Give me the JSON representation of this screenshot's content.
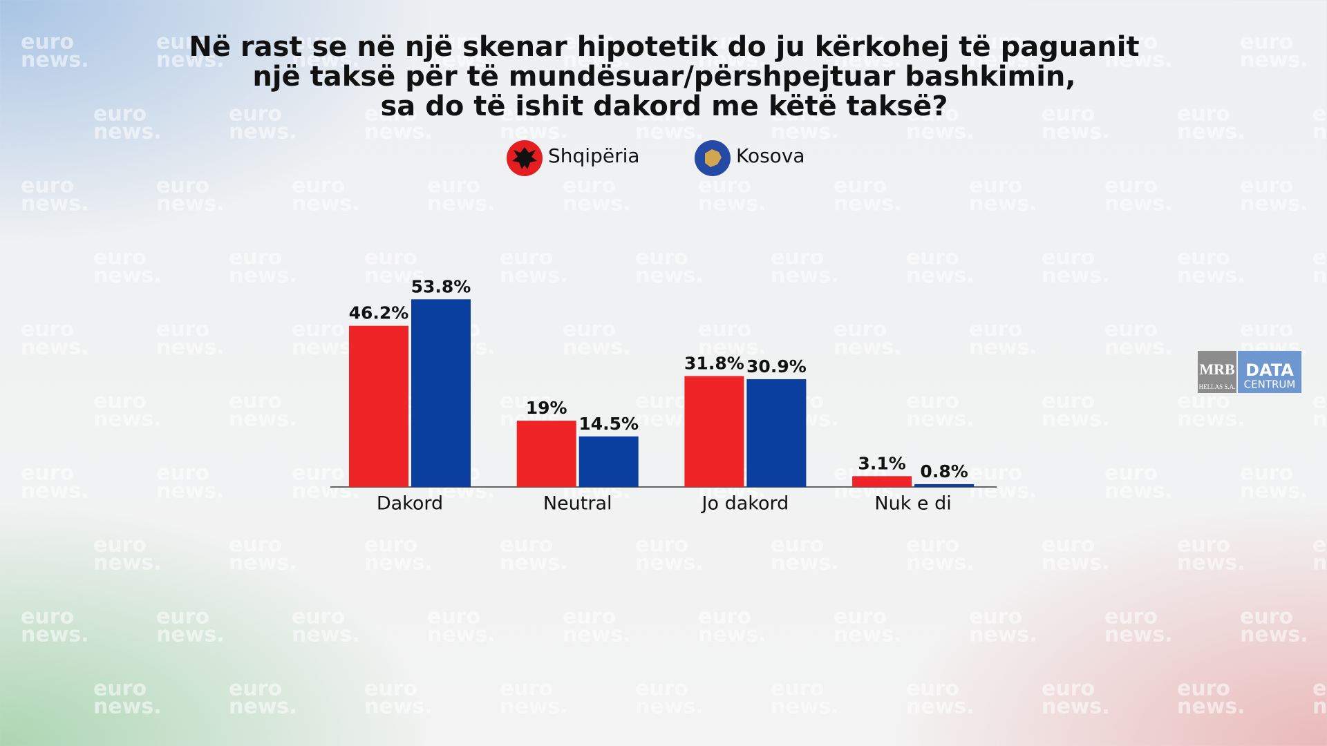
{
  "chart_data": {
    "type": "bar",
    "title": [
      "Në rast se në një skenar hipotetik do ju kërkohej të paguanit",
      "një taksë për të mundësuar/përshpejtuar bashkimin,",
      "sa do të ishit dakord me këtë taksë?"
    ],
    "categories": [
      "Dakord",
      "Neutral",
      "Jo dakord",
      "Nuk e di"
    ],
    "series": [
      {
        "name": "Shqipëria",
        "color": "#ee2427",
        "values": [
          46.2,
          19,
          31.8,
          3.1
        ],
        "value_labels": [
          "46.2%",
          "19%",
          "31.8%",
          "3.1%"
        ]
      },
      {
        "name": "Kosova",
        "color": "#0a3fa0",
        "values": [
          53.8,
          14.5,
          30.9,
          0.8
        ],
        "value_labels": [
          "53.8%",
          "14.5%",
          "30.9%",
          "0.8%"
        ]
      }
    ],
    "legend": "top"
  },
  "watermark": [
    "euro",
    "news."
  ],
  "logo": {
    "left": [
      "MRB",
      "HELLAS S.A."
    ],
    "right": [
      "DATA",
      "CENTRUM"
    ]
  }
}
